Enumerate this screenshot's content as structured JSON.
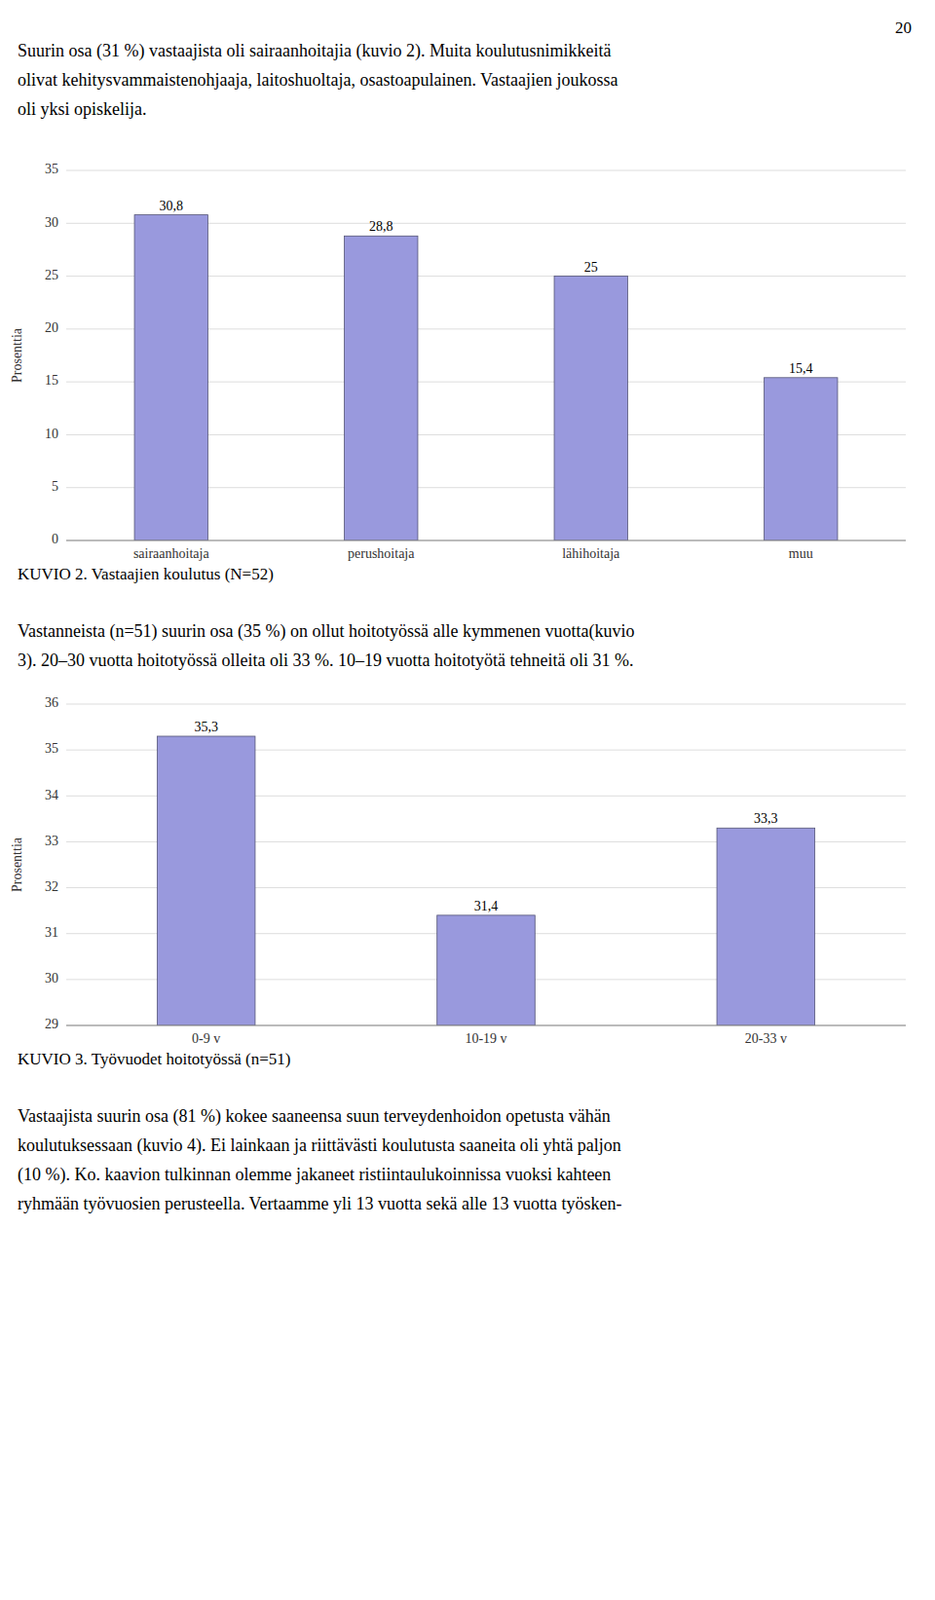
{
  "page_number": "20",
  "text_blocks": [
    [
      "Suurin osa (31 %) vastaajista oli sairaanhoitajia (kuvio 2). Muita koulutusnimikkeitä",
      "olivat kehitysvammaistenohjaaja, laitoshuoltaja, osastoapulainen. Vastaajien joukossa",
      "oli yksi opiskelija."
    ],
    [
      "Vastanneista (n=51) suurin osa (35 %) on ollut hoitotyössä alle kymmenen vuotta(kuvio",
      "3). 20–30 vuotta hoitotyössä olleita oli 33 %. 10–19 vuotta hoitotyötä tehneitä oli 31 %."
    ],
    [
      "Vastaajista suurin osa (81 %) kokee saaneensa suun terveydenhoidon opetusta vähän",
      "koulutuksessaan (kuvio 4). Ei lainkaan ja riittävästi koulutusta saaneita oli yhtä paljon",
      "(10 %). Ko. kaavion tulkinnan olemme jakaneet ristiintaulukoinnissa vuoksi kahteen",
      "ryhmään työvuosien perusteella. Vertaamme yli 13 vuotta sekä alle 13 vuotta työsken-"
    ]
  ],
  "chart_data": [
    {
      "type": "bar",
      "title": "KUVIO 2. Vastaajien koulutus (N=52)",
      "ylabel": "Prosenttia",
      "categories": [
        "sairaanhoitaja",
        "perushoitaja",
        "lähihoitaja",
        "muu"
      ],
      "values": [
        30.8,
        28.8,
        25.0,
        15.4
      ],
      "value_labels": [
        "30,8",
        "28,8",
        "25",
        "15,4"
      ],
      "data_labels": true,
      "color": "#9999DD",
      "ylim": [
        0,
        35
      ],
      "yticks": [
        0,
        5,
        10,
        15,
        20,
        25,
        30,
        35
      ],
      "grid": true
    },
    {
      "type": "bar",
      "title": "KUVIO 3. Työvuodet hoitotyössä (n=51)",
      "ylabel": "Prosenttia",
      "categories": [
        "0-9 v",
        "10-19 v",
        "20-33 v"
      ],
      "values": [
        35.3,
        31.4,
        33.3
      ],
      "value_labels": [
        "35,3",
        "31,4",
        "33,3"
      ],
      "data_labels": true,
      "color": "#9999DD",
      "ylim": [
        29,
        36
      ],
      "yticks": [
        29,
        30,
        31,
        32,
        33,
        34,
        35,
        36
      ],
      "grid": true
    }
  ]
}
